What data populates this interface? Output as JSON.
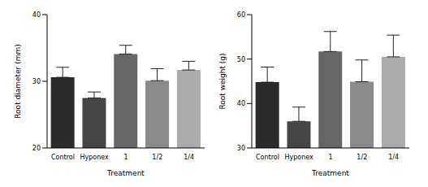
{
  "chart_data": [
    {
      "type": "bar",
      "x_label": "Treatment",
      "y_label": "Root diameter (mm)",
      "categories": [
        "Control",
        "Hyponex",
        "1",
        "1/2",
        "1/4"
      ],
      "values": [
        30.6,
        27.5,
        34.1,
        30.1,
        31.7
      ],
      "errors": [
        1.5,
        0.9,
        1.3,
        1.8,
        1.3
      ],
      "colors": [
        "#2b2b2b",
        "#464646",
        "#676767",
        "#8a8a8a",
        "#ababab"
      ],
      "ylim": [
        20,
        40
      ],
      "yticks": [
        20,
        30,
        40
      ]
    },
    {
      "type": "bar",
      "x_label": "Treatment",
      "y_label": "Root weight (g)",
      "categories": [
        "Control",
        "Hyponex",
        "1",
        "1/2",
        "1/4"
      ],
      "values": [
        44.8,
        36.0,
        51.7,
        44.9,
        50.5
      ],
      "errors": [
        3.4,
        3.2,
        4.5,
        4.9,
        4.9
      ],
      "colors": [
        "#2b2b2b",
        "#464646",
        "#676767",
        "#8a8a8a",
        "#ababab"
      ],
      "ylim": [
        30,
        60
      ],
      "yticks": [
        30,
        40,
        50,
        60
      ]
    }
  ]
}
